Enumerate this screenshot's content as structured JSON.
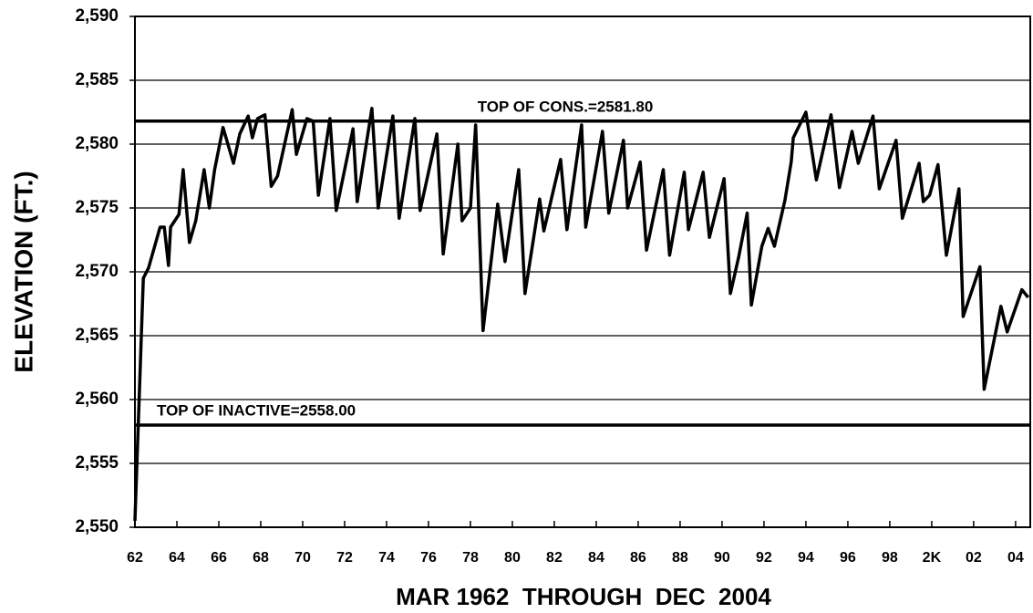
{
  "chart_data": {
    "type": "line",
    "ylabel": "ELEVATION (FT.)",
    "xlabel": "MAR 1962  THROUGH  DEC  2004",
    "x": [
      1962.0,
      1962.4,
      1962.65,
      1963.2,
      1963.4,
      1963.6,
      1963.7,
      1964.1,
      1964.3,
      1964.6,
      1964.9,
      1965.3,
      1965.55,
      1965.8,
      1966.2,
      1966.7,
      1967.0,
      1967.4,
      1967.6,
      1967.85,
      1968.2,
      1968.5,
      1968.8,
      1969.5,
      1969.7,
      1970.2,
      1970.5,
      1970.75,
      1971.3,
      1971.6,
      1972.4,
      1972.6,
      1973.3,
      1973.6,
      1974.3,
      1974.6,
      1975.35,
      1975.6,
      1976.4,
      1976.7,
      1977.4,
      1977.6,
      1978.0,
      1978.25,
      1978.6,
      1979.3,
      1979.65,
      1980.3,
      1980.6,
      1981.3,
      1981.5,
      1982.3,
      1982.6,
      1983.3,
      1983.5,
      1984.3,
      1984.6,
      1985.3,
      1985.5,
      1986.1,
      1986.4,
      1987.2,
      1987.5,
      1988.2,
      1988.4,
      1989.1,
      1989.4,
      1990.1,
      1990.4,
      1990.8,
      1991.2,
      1991.4,
      1991.9,
      1992.2,
      1992.5,
      1993.0,
      1993.3,
      1993.4,
      1994.0,
      1994.5,
      1995.2,
      1995.6,
      1996.2,
      1996.5,
      1997.2,
      1997.5,
      1998.3,
      1998.6,
      1999.4,
      1999.6,
      1999.9,
      2000.3,
      2000.7,
      2001.3,
      2001.5,
      2002.3,
      2002.5,
      2003.3,
      2003.6,
      2004.3,
      2004.6
    ],
    "series": [
      {
        "name": "Elevation",
        "color": "#000000",
        "values": [
          2550.5,
          2569.5,
          2570.3,
          2573.5,
          2573.5,
          2570.5,
          2573.5,
          2574.5,
          2578.0,
          2572.3,
          2574.0,
          2578.0,
          2575.0,
          2578.0,
          2581.3,
          2578.5,
          2580.8,
          2582.2,
          2580.5,
          2582.0,
          2582.3,
          2576.7,
          2577.5,
          2582.7,
          2579.2,
          2582.0,
          2581.8,
          2576.0,
          2582.0,
          2574.8,
          2581.2,
          2575.5,
          2582.8,
          2575.0,
          2582.2,
          2574.2,
          2582.0,
          2574.8,
          2580.8,
          2571.4,
          2580.0,
          2574.0,
          2575.0,
          2581.5,
          2565.4,
          2575.3,
          2570.8,
          2578.0,
          2568.3,
          2575.7,
          2573.2,
          2578.8,
          2573.3,
          2581.5,
          2573.5,
          2581.0,
          2574.6,
          2580.3,
          2575.0,
          2578.6,
          2571.7,
          2578.0,
          2571.3,
          2577.8,
          2573.3,
          2577.8,
          2572.7,
          2577.3,
          2568.3,
          2571.2,
          2574.6,
          2567.4,
          2572.0,
          2573.4,
          2572.0,
          2575.6,
          2578.6,
          2580.5,
          2582.5,
          2577.2,
          2582.3,
          2576.6,
          2581.0,
          2578.5,
          2582.2,
          2576.5,
          2580.3,
          2574.2,
          2578.5,
          2575.5,
          2576.0,
          2578.4,
          2571.3,
          2576.5,
          2566.5,
          2570.4,
          2560.8,
          2567.3,
          2565.3,
          2568.6,
          2568.0
        ]
      }
    ],
    "reference_lines": [
      {
        "value": 2581.8,
        "label": "TOP OF CONS.=2581.80"
      },
      {
        "value": 2558.0,
        "label": "TOP OF INACTIVE=2558.00"
      }
    ],
    "xlim": [
      1962,
      2004.7
    ],
    "xticks": [
      {
        "value": 1962,
        "label": "62"
      },
      {
        "value": 1964,
        "label": "64"
      },
      {
        "value": 1966,
        "label": "66"
      },
      {
        "value": 1968,
        "label": "68"
      },
      {
        "value": 1970,
        "label": "70"
      },
      {
        "value": 1972,
        "label": "72"
      },
      {
        "value": 1974,
        "label": "74"
      },
      {
        "value": 1976,
        "label": "76"
      },
      {
        "value": 1978,
        "label": "78"
      },
      {
        "value": 1980,
        "label": "80"
      },
      {
        "value": 1982,
        "label": "82"
      },
      {
        "value": 1984,
        "label": "84"
      },
      {
        "value": 1986,
        "label": "86"
      },
      {
        "value": 1988,
        "label": "88"
      },
      {
        "value": 1990,
        "label": "90"
      },
      {
        "value": 1992,
        "label": "92"
      },
      {
        "value": 1994,
        "label": "94"
      },
      {
        "value": 1996,
        "label": "96"
      },
      {
        "value": 1998,
        "label": "98"
      },
      {
        "value": 2000,
        "label": "2K"
      },
      {
        "value": 2002,
        "label": "02"
      },
      {
        "value": 2004,
        "label": "04"
      }
    ],
    "ylim": [
      2550,
      2590
    ],
    "yticks": [
      {
        "value": 2550,
        "label": "2,550"
      },
      {
        "value": 2555,
        "label": "2,555"
      },
      {
        "value": 2560,
        "label": "2,560"
      },
      {
        "value": 2565,
        "label": "2,565"
      },
      {
        "value": 2570,
        "label": "2,570"
      },
      {
        "value": 2575,
        "label": "2,575"
      },
      {
        "value": 2580,
        "label": "2,580"
      },
      {
        "value": 2585,
        "label": "2,585"
      },
      {
        "value": 2590,
        "label": "2,590"
      }
    ],
    "grid": true
  }
}
